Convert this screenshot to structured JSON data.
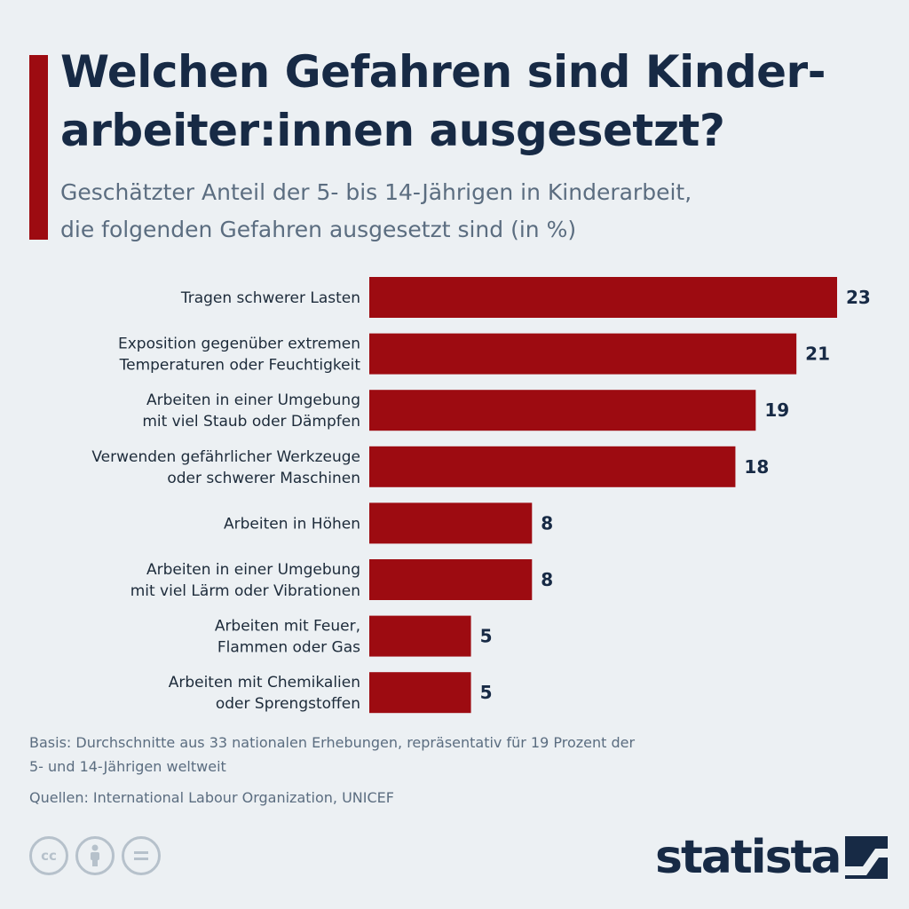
{
  "header": {
    "title": "Welchen Gefahren sind Kinder-arbeiter:innen ausgesetzt?",
    "subtitle": "Geschätzter Anteil der 5- bis 14-Jährigen in Kinderarbeit, die folgenden Gefahren ausgesetzt sind (in %)"
  },
  "chart_data": {
    "type": "bar",
    "orientation": "horizontal",
    "categories": [
      "Tragen schwerer Lasten",
      "Exposition gegenüber extremen Temperaturen oder Feuchtigkeit",
      "Arbeiten in einer Umgebung mit viel Staub oder Dämpfen",
      "Verwenden gefährlicher Werkzeuge oder schwerer Maschinen",
      "Arbeiten in Höhen",
      "Arbeiten in einer Umgebung mit viel Lärm oder Vibrationen",
      "Arbeiten mit Feuer, Flammen oder Gas",
      "Arbeiten mit Chemikalien oder Sprengstoffen"
    ],
    "category_lines": [
      [
        "Tragen schwerer Lasten"
      ],
      [
        "Exposition gegenüber extremen",
        "Temperaturen oder Feuchtigkeit"
      ],
      [
        "Arbeiten in einer Umgebung",
        "mit viel Staub oder Dämpfen"
      ],
      [
        "Verwenden gefährlicher Werkzeuge",
        "oder schwerer Maschinen"
      ],
      [
        "Arbeiten in Höhen"
      ],
      [
        "Arbeiten in einer Umgebung",
        "mit viel Lärm oder Vibrationen"
      ],
      [
        "Arbeiten mit Feuer,",
        "Flammen oder Gas"
      ],
      [
        "Arbeiten mit Chemikalien",
        "oder Sprengstoffen"
      ]
    ],
    "values": [
      23,
      21,
      19,
      18,
      8,
      8,
      5,
      5
    ],
    "xlim": [
      0,
      23
    ],
    "bar_color": "#9d0b11",
    "grid": false,
    "legend": "none"
  },
  "footer": {
    "basis": "Basis: Durchschnitte aus 33 nationalen Erhebungen, repräsentativ für 19 Prozent der 5- und 14-Jährigen weltweit",
    "sources": "Quellen: International Labour Organization, UNICEF",
    "license_icons": [
      "cc",
      "by",
      "nd"
    ],
    "brand": "statista"
  },
  "colors": {
    "background": "#ecf0f3",
    "accent": "#9d0b11",
    "title": "#172a45",
    "muted": "#5b6d80"
  }
}
